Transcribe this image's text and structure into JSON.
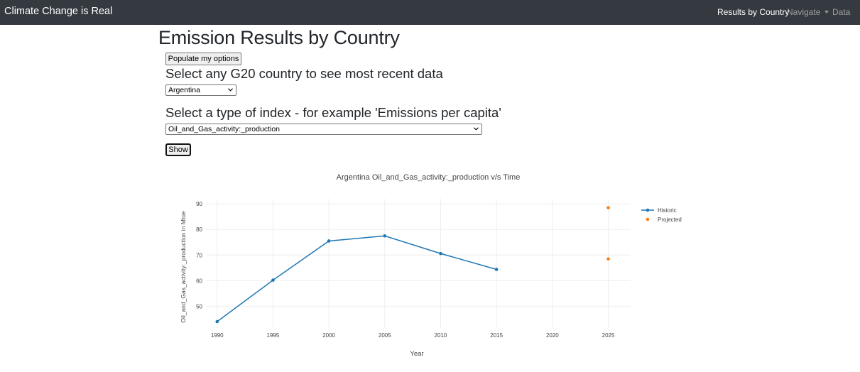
{
  "navbar": {
    "brand": "Climate Change is Real",
    "links": [
      {
        "label": "Results by Country",
        "active": true
      },
      {
        "label": "Navigate",
        "dropdown": true
      },
      {
        "label": "Data"
      }
    ]
  },
  "page": {
    "title": "Emission Results by Country",
    "populate_button": "Populate my options",
    "country_label": "Select any G20 country to see most recent data",
    "country_selected": "Argentina",
    "index_label": "Select a type of index - for example 'Emissions per capita'",
    "index_selected": "Oil_and_Gas_activity:_production",
    "show_button": "Show"
  },
  "colors": {
    "navbar_bg": "#343a40",
    "historic": "#1f77b4",
    "projected": "#ff7f0e"
  },
  "chart_data": {
    "type": "line",
    "title": "Argentina Oil_and_Gas_activity:_production v/s Time",
    "xlabel": "Year",
    "ylabel": "Oil_and_Gas_activity:_production in Mtoe",
    "xlim": [
      1989,
      2027
    ],
    "ylim": [
      41.5,
      92
    ],
    "xticks": [
      1990,
      1995,
      2000,
      2005,
      2010,
      2015,
      2020,
      2025
    ],
    "yticks": [
      50,
      60,
      70,
      80,
      90
    ],
    "grid": true,
    "legend_position": "top-right",
    "series": [
      {
        "name": "Historic",
        "mode": "lines+markers",
        "x": [
          1990,
          1995,
          2000,
          2005,
          2010,
          2015
        ],
        "y": [
          44,
          60.2,
          75.5,
          77.5,
          70.6,
          64.4
        ]
      },
      {
        "name": "Projected",
        "mode": "markers",
        "x": [
          2025,
          2025
        ],
        "y": [
          88.5,
          68.5
        ]
      }
    ]
  }
}
